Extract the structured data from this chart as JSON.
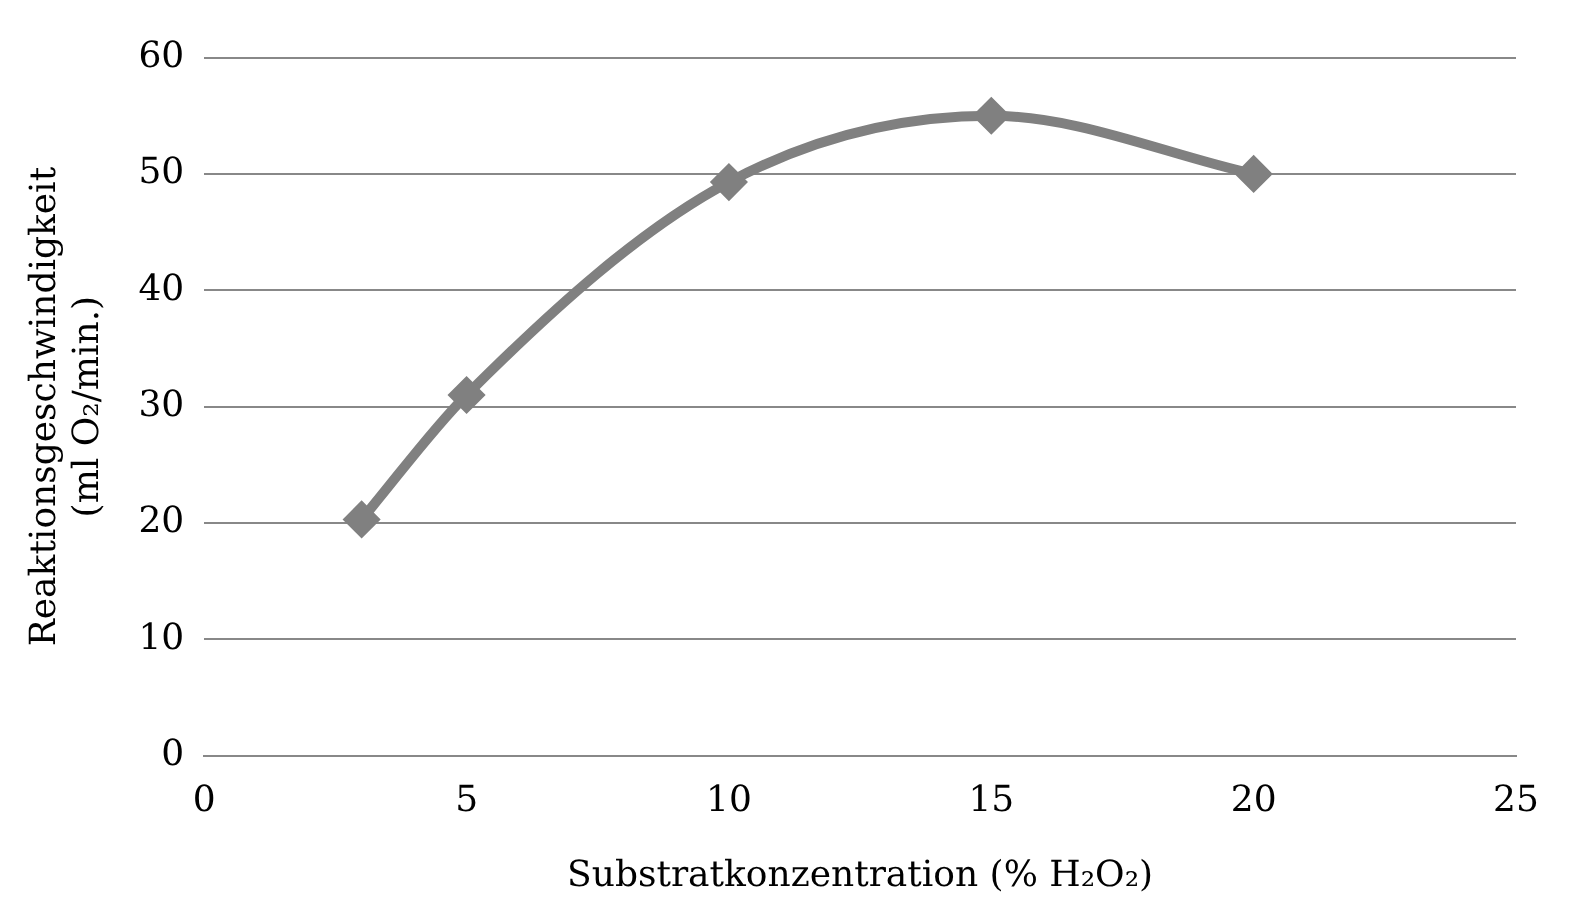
{
  "chart_data": {
    "type": "line",
    "xlabel": "Substratkonzentration (% H₂O₂)",
    "ylabel": "Reaktionsgeschwindigkeit\n(ml O₂/min.)",
    "x": [
      3,
      5,
      10,
      15,
      20
    ],
    "series": [
      {
        "color": "#808080",
        "values": [
          20.3,
          31,
          49.3,
          55,
          50
        ]
      }
    ],
    "xlim": [
      0,
      25
    ],
    "xticks": [
      0,
      5,
      10,
      15,
      20,
      25
    ],
    "ylim": [
      0,
      60
    ],
    "yticks": [
      0,
      10,
      20,
      30,
      40,
      50,
      60
    ],
    "grid": "y",
    "legend": false,
    "marker": "diamond",
    "line_style": "solid"
  }
}
